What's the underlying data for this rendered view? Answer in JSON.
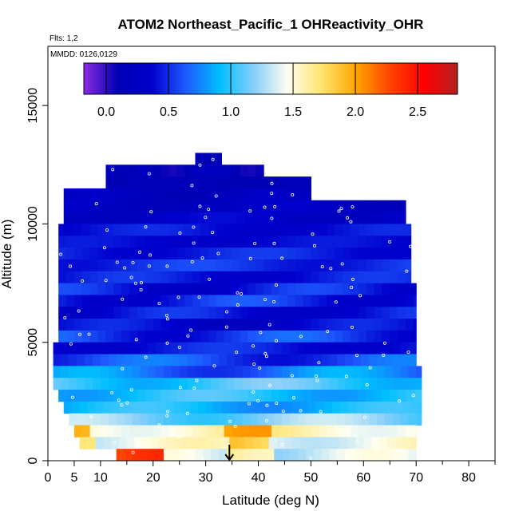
{
  "chart_data": {
    "type": "heatmap",
    "title": "ATOM2 Northeast_Pacific_1 OHReactivity_OHR",
    "flights_label": "Flts: 1,2",
    "dates_label": "MMDD: 0126,0129",
    "xlabel": "Latitude (deg N)",
    "ylabel": "Altitude (m)",
    "xlim": [
      0,
      85
    ],
    "ylim": [
      0,
      17500
    ],
    "x_ticks": [
      0,
      5,
      10,
      20,
      30,
      40,
      50,
      60,
      70,
      80
    ],
    "x_tick_labels": [
      "0",
      "5",
      "10",
      "20",
      "30",
      "40",
      "50",
      "60",
      "70",
      "80"
    ],
    "y_ticks": [
      0,
      5000,
      10000,
      15000
    ],
    "y_tick_labels": [
      "0",
      "5000",
      "10000",
      "15000"
    ],
    "colorbar": {
      "range": [
        -0.18,
        2.82
      ],
      "ticks": [
        0.0,
        0.5,
        1.0,
        1.5,
        2.0,
        2.5
      ],
      "tick_labels": [
        "0.0",
        "0.5",
        "1.0",
        "1.5",
        "2.0",
        "2.5"
      ],
      "colors": [
        "#8a2be2",
        "#0000b4",
        "#0000cd",
        "#1e5aff",
        "#00bfff",
        "#87cefa",
        "#fffff0",
        "#ffe46e",
        "#ffa500",
        "#ff4500",
        "#ff0000",
        "#b22222"
      ]
    },
    "arrow_marker_latitude": 34.5,
    "grid": false,
    "bands": [
      {
        "alt": [
          12500,
          13000
        ],
        "lat": [
          28,
          33
        ],
        "v": [
          0.1,
          0.1
        ]
      },
      {
        "alt": [
          12000,
          12500
        ],
        "lat": [
          11,
          20
        ],
        "v": [
          0.1,
          0.2
        ]
      },
      {
        "alt": [
          12000,
          12500
        ],
        "lat": [
          20,
          41
        ],
        "v": [
          0.05,
          0.25
        ]
      },
      {
        "alt": [
          11500,
          12000
        ],
        "lat": [
          11,
          50
        ],
        "v": [
          0.1,
          0.15
        ]
      },
      {
        "alt": [
          11000,
          11500
        ],
        "lat": [
          3,
          50
        ],
        "v": [
          0.1,
          0.3
        ]
      },
      {
        "alt": [
          10500,
          11000
        ],
        "lat": [
          3,
          68
        ],
        "v": [
          0.15,
          0.35
        ]
      },
      {
        "alt": [
          10000,
          10500
        ],
        "lat": [
          3,
          68
        ],
        "v": [
          0.2,
          0.4
        ]
      },
      {
        "alt": [
          9500,
          10000
        ],
        "lat": [
          2,
          69
        ],
        "v": [
          0.3,
          0.5
        ]
      },
      {
        "alt": [
          9000,
          9500
        ],
        "lat": [
          2,
          69
        ],
        "v": [
          0.3,
          0.45
        ]
      },
      {
        "alt": [
          8500,
          9000
        ],
        "lat": [
          2,
          69
        ],
        "v": [
          0.35,
          0.55
        ]
      },
      {
        "alt": [
          8000,
          8500
        ],
        "lat": [
          2,
          69
        ],
        "v": [
          0.4,
          0.6
        ]
      },
      {
        "alt": [
          7500,
          8000
        ],
        "lat": [
          2,
          69
        ],
        "v": [
          0.3,
          0.55
        ]
      },
      {
        "alt": [
          7000,
          7500
        ],
        "lat": [
          2,
          70
        ],
        "v": [
          0.25,
          0.6
        ]
      },
      {
        "alt": [
          6500,
          7000
        ],
        "lat": [
          2,
          70
        ],
        "v": [
          0.3,
          0.65
        ]
      },
      {
        "alt": [
          6000,
          6500
        ],
        "lat": [
          2,
          70
        ],
        "v": [
          0.25,
          0.55
        ]
      },
      {
        "alt": [
          5500,
          6000
        ],
        "lat": [
          2,
          70
        ],
        "v": [
          0.2,
          0.5
        ]
      },
      {
        "alt": [
          5000,
          5500
        ],
        "lat": [
          2,
          70
        ],
        "v": [
          0.35,
          0.7
        ]
      },
      {
        "alt": [
          4500,
          5000
        ],
        "lat": [
          1,
          70
        ],
        "v": [
          0.3,
          0.55
        ]
      },
      {
        "alt": [
          4000,
          4500
        ],
        "lat": [
          1,
          70
        ],
        "v": [
          0.4,
          0.75
        ]
      },
      {
        "alt": [
          3500,
          4000
        ],
        "lat": [
          1,
          71
        ],
        "v": [
          0.5,
          0.9
        ]
      },
      {
        "alt": [
          3000,
          3500
        ],
        "lat": [
          1,
          71
        ],
        "v": [
          0.85,
          1.2
        ]
      },
      {
        "alt": [
          2500,
          3000
        ],
        "lat": [
          2,
          71
        ],
        "v": [
          0.8,
          1.1
        ]
      },
      {
        "alt": [
          2000,
          2500
        ],
        "lat": [
          3,
          71
        ],
        "v": [
          0.75,
          1.05
        ]
      },
      {
        "alt": [
          1500,
          2000
        ],
        "lat": [
          4,
          71
        ],
        "v": [
          1.0,
          1.35
        ]
      },
      {
        "alt": [
          1000,
          1500
        ],
        "lat": [
          5,
          70
        ],
        "v": [
          1.4,
          1.7
        ]
      },
      {
        "alt": [
          500,
          1000
        ],
        "lat": [
          6,
          70
        ],
        "v": [
          1.3,
          1.6
        ]
      },
      {
        "alt": [
          0,
          500
        ],
        "lat": [
          13,
          70
        ],
        "v": [
          1.2,
          1.5
        ]
      }
    ]
  }
}
